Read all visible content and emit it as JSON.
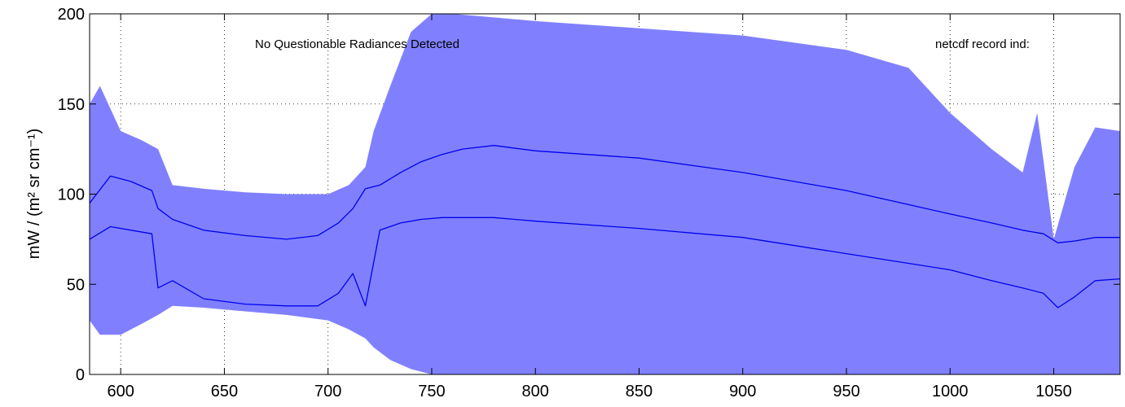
{
  "chart_data": {
    "type": "line",
    "title": "",
    "xlabel": "",
    "ylabel": "mW / (m² sr cm⁻¹)",
    "xlim": [
      585,
      1082
    ],
    "ylim": [
      0,
      200
    ],
    "grid": true,
    "x_ticks": [
      600,
      650,
      700,
      750,
      800,
      850,
      900,
      950,
      1000,
      1050
    ],
    "y_ticks": [
      0,
      50,
      100,
      150,
      200
    ],
    "annotations": [
      "No Questionable Radiances Detected",
      "netcdf record ind:"
    ],
    "colors": {
      "envelope": "#8080ff",
      "series": "#0000ee",
      "axis": "#000000",
      "background": "#ffffff"
    },
    "envelope": {
      "x": [
        585,
        590,
        600,
        610,
        618,
        625,
        640,
        660,
        680,
        700,
        710,
        718,
        722,
        730,
        740,
        750,
        755,
        760,
        780,
        800,
        850,
        900,
        950,
        980,
        1000,
        1020,
        1035,
        1042,
        1050,
        1060,
        1070,
        1082
      ],
      "upper": [
        150,
        160,
        135,
        130,
        125,
        105,
        103,
        101,
        100,
        100,
        105,
        115,
        135,
        160,
        190,
        200,
        200,
        200,
        198,
        196,
        192,
        188,
        180,
        170,
        145,
        125,
        112,
        145,
        75,
        115,
        137,
        135
      ],
      "lower": [
        30,
        22,
        22,
        28,
        33,
        38,
        37,
        35,
        33,
        30,
        25,
        20,
        15,
        8,
        3,
        0,
        0,
        0,
        0,
        0,
        0,
        0,
        0,
        0,
        0,
        0,
        0,
        0,
        0,
        0,
        0,
        0
      ]
    },
    "series": [
      {
        "x": [
          585,
          595,
          605,
          615,
          618,
          625,
          640,
          660,
          680,
          695,
          705,
          712,
          718,
          725,
          735,
          745,
          755,
          765,
          780,
          800,
          850,
          900,
          950,
          1000,
          1020,
          1035,
          1045,
          1052,
          1060,
          1070,
          1082
        ],
        "values": [
          95,
          110,
          107,
          102,
          92,
          86,
          80,
          77,
          75,
          77,
          84,
          92,
          103,
          105,
          112,
          118,
          122,
          125,
          127,
          124,
          120,
          112,
          102,
          89,
          84,
          80,
          78,
          73,
          74,
          76,
          76
        ]
      },
      {
        "x": [
          585,
          595,
          605,
          615,
          618,
          625,
          640,
          660,
          680,
          695,
          705,
          712,
          718,
          725,
          735,
          745,
          755,
          765,
          780,
          800,
          850,
          900,
          950,
          1000,
          1020,
          1035,
          1045,
          1052,
          1060,
          1070,
          1082
        ],
        "values": [
          75,
          82,
          80,
          78,
          48,
          52,
          42,
          39,
          38,
          38,
          45,
          56,
          38,
          80,
          84,
          86,
          87,
          87,
          87,
          85,
          81,
          76,
          67,
          58,
          52,
          48,
          45,
          37,
          43,
          52,
          53
        ]
      }
    ]
  }
}
